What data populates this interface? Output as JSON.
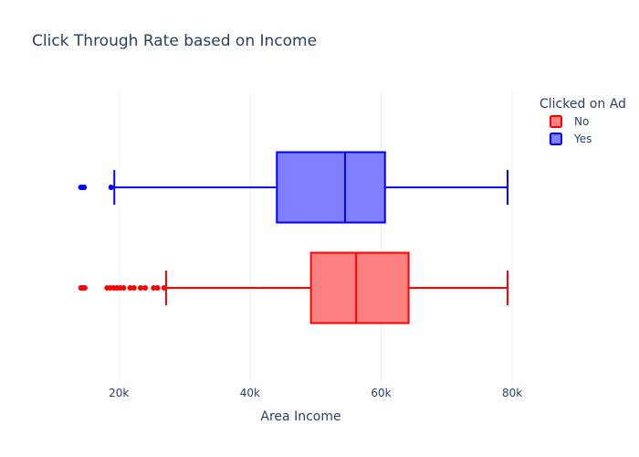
{
  "chart_data": {
    "type": "box",
    "orientation": "horizontal",
    "title": "Click Through Rate based on Income",
    "xlabel": "Area Income",
    "ylabel": "",
    "xlim": [
      13000,
      82500
    ],
    "x_ticks": [
      20000,
      40000,
      60000,
      80000
    ],
    "x_tick_labels": [
      "20k",
      "40k",
      "60k",
      "80k"
    ],
    "grid": true,
    "legend": {
      "title": "Clicked on Ad",
      "position": "top-right"
    },
    "series": [
      {
        "name": "No",
        "color": "#ff0000",
        "fill": "#ff8080",
        "lower_fence": 27200,
        "q1": 49300,
        "median": 56200,
        "q3": 64200,
        "upper_fence": 79300,
        "outliers": [
          14200,
          14400,
          14600,
          14800,
          18200,
          18700,
          19200,
          19700,
          20200,
          20700,
          21700,
          22300,
          23300,
          24000,
          25300,
          25900,
          26900
        ]
      },
      {
        "name": "Yes",
        "color": "#0000ff",
        "fill": "#8080ff",
        "lower_fence": 19300,
        "q1": 44100,
        "median": 54500,
        "q3": 60600,
        "upper_fence": 79300,
        "outliers": [
          14200,
          14400,
          14700,
          18800
        ]
      }
    ]
  }
}
